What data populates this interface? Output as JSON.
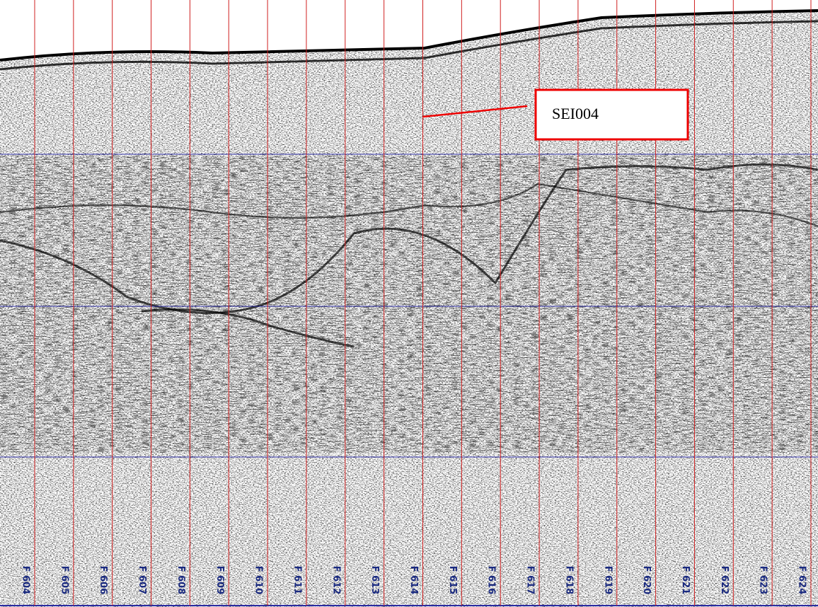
{
  "annotation": "SEI004",
  "fixes": [
    "F 604",
    "F 605",
    "F 606",
    "F 607",
    "F 608",
    "F 609",
    "F 610",
    "F 611",
    "F 612",
    "F 613",
    "F 614",
    "F 615",
    "F 616",
    "F 617",
    "F 618",
    "F 619",
    "F 620",
    "F 621",
    "F 622",
    "F 623",
    "F 624"
  ]
}
